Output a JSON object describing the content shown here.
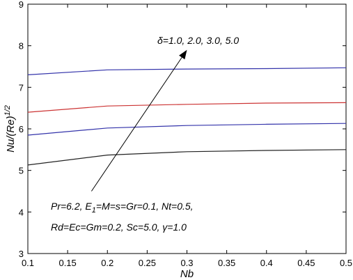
{
  "chart_data": {
    "type": "line",
    "title": "",
    "xlabel": "Nb",
    "ylabel_main": "Nu/(Re)",
    "ylabel_sup": "1/2",
    "xlim": [
      0.1,
      0.5
    ],
    "ylim": [
      3,
      9
    ],
    "xticks": [
      "0.1",
      "0.15",
      "0.2",
      "0.25",
      "0.3",
      "0.35",
      "0.4",
      "0.45",
      "0.5"
    ],
    "yticks": [
      "3",
      "4",
      "5",
      "6",
      "7",
      "8",
      "9"
    ],
    "grid": false,
    "x": [
      0.1,
      0.2,
      0.3,
      0.4,
      0.5
    ],
    "series": [
      {
        "color": "#3333aa",
        "values": [
          7.3,
          7.42,
          7.44,
          7.45,
          7.47
        ]
      },
      {
        "color": "#cc3333",
        "values": [
          6.4,
          6.55,
          6.59,
          6.62,
          6.63
        ]
      },
      {
        "color": "#3333aa",
        "values": [
          5.85,
          6.02,
          6.08,
          6.11,
          6.13
        ]
      },
      {
        "color": "#222222",
        "values": [
          5.13,
          5.37,
          5.45,
          5.48,
          5.5
        ]
      }
    ],
    "arrow": {
      "from": [
        0.18,
        4.5
      ],
      "to": [
        0.3,
        7.9
      ]
    },
    "annotations": {
      "delta_label": "δ=1.0, 2.0, 3.0, 5.0",
      "params_line1": "Pr=6.2, E",
      "params_line1_sub": "1",
      "params_line1_rest": "=M=s=Gr=0.1, Nt=0.5,",
      "params_line2": "Rd=Ec=Gm=0.2, Sc=5.0, γ=1.0"
    }
  }
}
